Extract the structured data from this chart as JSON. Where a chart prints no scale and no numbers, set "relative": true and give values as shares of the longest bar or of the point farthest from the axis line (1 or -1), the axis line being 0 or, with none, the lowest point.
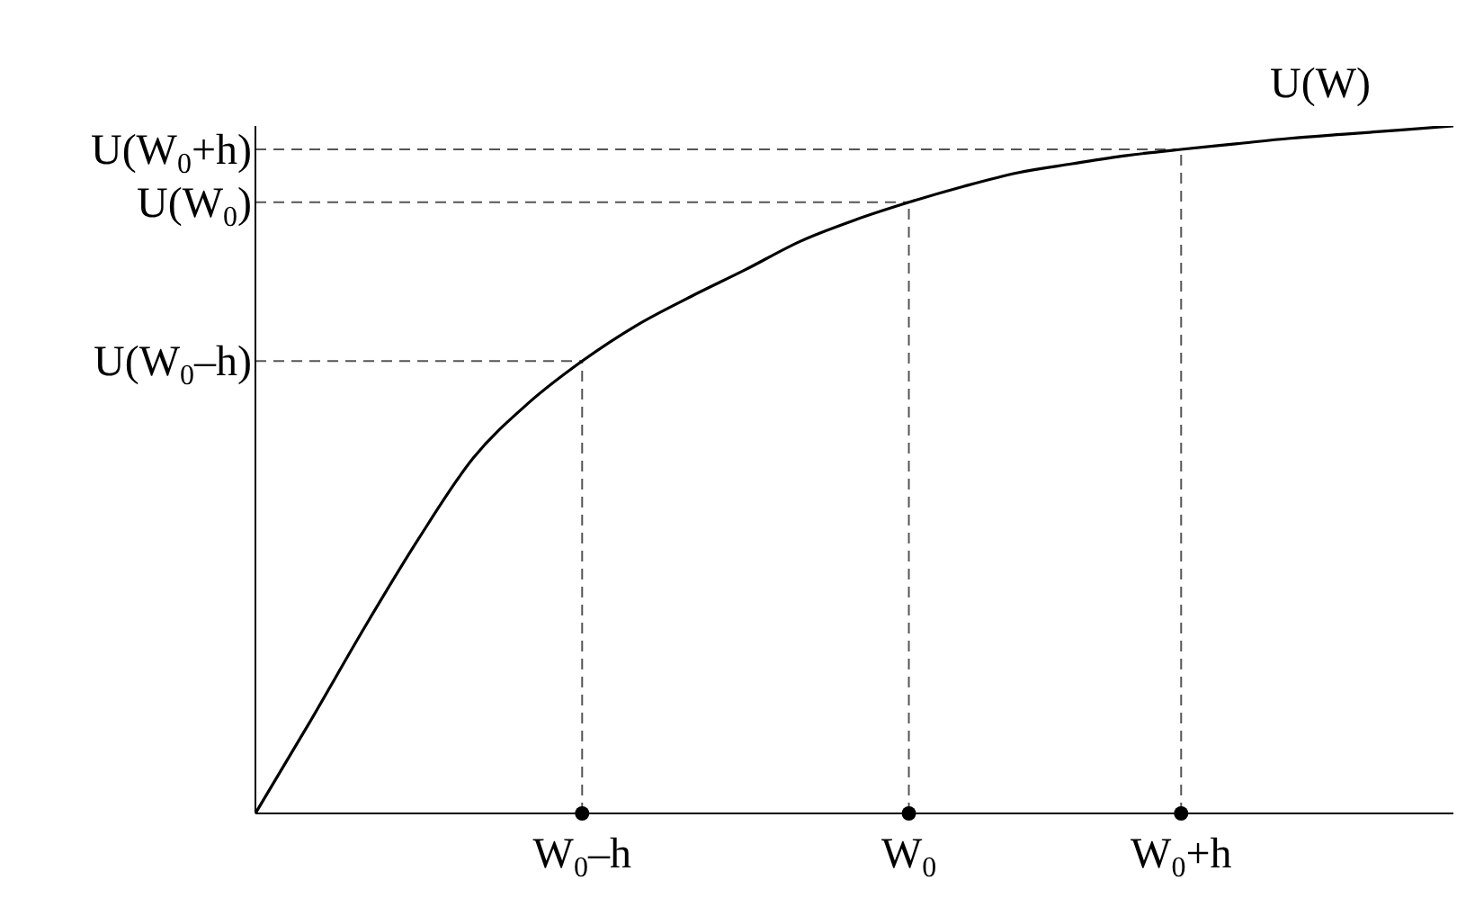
{
  "chart_data": {
    "type": "line",
    "relative": true,
    "categories": [
      null,
      null,
      null,
      null,
      null,
      null,
      "W$_{0}$–h",
      null,
      null,
      null,
      null,
      null,
      "W$_{0}$",
      null,
      null,
      null,
      null,
      "W$_{0}$+h",
      null,
      null,
      null,
      null,
      null
    ],
    "series": [
      {
        "name": "U(W)",
        "color": "#000000",
        "values": [
          0,
          0.133,
          0.27,
          0.4,
          0.517,
          0.596,
          0.658,
          0.71,
          0.752,
          0.791,
          0.832,
          0.863,
          0.889,
          0.912,
          0.932,
          0.945,
          0.957,
          0.966,
          0.974,
          0.982,
          0.988,
          0.994,
          1
        ]
      }
    ],
    "ref_lines": [
      {
        "axis": "y",
        "value": 0.658,
        "label": "U(W$_{0}$–h)",
        "line_style": "dashed"
      },
      {
        "axis": "y",
        "value": 0.889,
        "label": "U(W$_{0}$)",
        "line_style": "dashed"
      },
      {
        "axis": "y",
        "value": 0.966,
        "label": "U(W$_{0}$+h)",
        "line_style": "dashed"
      },
      {
        "axis": "x",
        "value": "W$_{0}$–h",
        "line_style": "dashed"
      },
      {
        "axis": "x",
        "value": "W$_{0}$",
        "line_style": "dashed"
      },
      {
        "axis": "x",
        "value": "W$_{0}$+h",
        "line_style": "dashed"
      }
    ],
    "grid": false,
    "legend": false,
    "marker": "none",
    "line_style": "solid"
  }
}
